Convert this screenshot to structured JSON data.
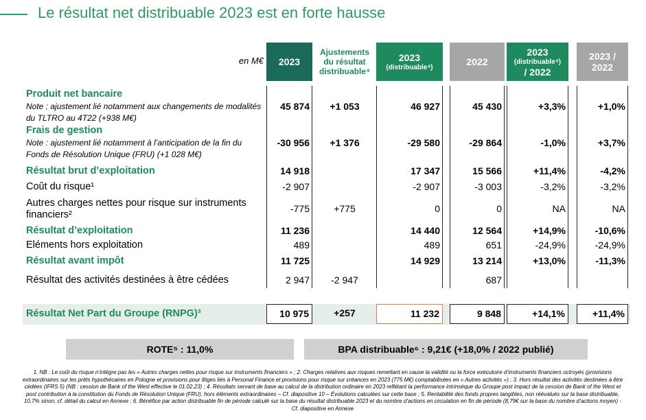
{
  "title": "Le résultat net distribuable 2023 est en forte hausse",
  "table": {
    "unit": "en M€",
    "columns": [
      [
        "2023"
      ],
      [
        "Ajustements du résultat distribuable⁴"
      ],
      [
        "2023",
        "(distribuable⁴)"
      ],
      [
        "2022"
      ],
      [
        "2023",
        "(distribuable⁴)",
        "/ 2022"
      ],
      [
        "2023 /",
        "2022"
      ]
    ],
    "rows": [
      {
        "label": "Produit net bancaire",
        "bold": true,
        "note": "Note : ajustement lié notamment aux changements de modalités du TLTRO au 4T22 (+938 M€)",
        "cells": [
          "45 874",
          "+1 053",
          "46 927",
          "45 430",
          "+3,3%",
          "+1,0%"
        ]
      },
      {
        "label": "Frais de gestion",
        "bold": true,
        "note": "Note : ajustement lié notamment à l’anticipation de la fin du Fonds de Résolution Unique (FRU) (+1 028 M€)",
        "cells": [
          "-30 956",
          "+1 376",
          "-29 580",
          "-29 864",
          "-1,0%",
          "+3,7%"
        ]
      },
      {
        "label": "Résultat brut d’exploitation",
        "bold": true,
        "cells": [
          "14 918",
          null,
          "17 347",
          "15 566",
          "+11,4%",
          "-4,2%"
        ]
      },
      {
        "label": "Coût du risque¹",
        "bold": false,
        "cells": [
          "-2 907",
          null,
          "-2 907",
          "-3 003",
          "-3,2%",
          "-3,2%"
        ]
      },
      {
        "label": "Autres charges nettes pour risque sur instruments financiers²",
        "bold": false,
        "cells": [
          "-775",
          "+775",
          "0",
          "0",
          "NA",
          "NA"
        ]
      },
      {
        "label": "Résultat d’exploitation",
        "bold": true,
        "cells": [
          "11 236",
          null,
          "14 440",
          "12 564",
          "+14,9%",
          "-10,6%"
        ]
      },
      {
        "label": "Eléments hors exploitation",
        "bold": false,
        "cells": [
          "489",
          null,
          "489",
          "651",
          "-24,9%",
          "-24,9%"
        ]
      },
      {
        "label": "Résultat avant impôt",
        "bold": true,
        "cells": [
          "11 725",
          null,
          "14 929",
          "13 214",
          "+13,0%",
          "-11,3%"
        ]
      },
      {
        "label": "Résultat des activités destinées à être cédées",
        "bold": false,
        "cells": [
          "2 947",
          "-2 947",
          null,
          "687",
          null,
          null
        ]
      }
    ],
    "total": {
      "label": "Résultat Net Part du Groupe (RNPG)³",
      "cells": [
        "10 975",
        "+257",
        "11 232",
        "9 848",
        "+14,1%",
        "+11,4%"
      ]
    }
  },
  "kpis": [
    "ROTE⁵ : 11,0%",
    "BPA distribuable⁶ : 9,21€ (+18,0% / 2022 publié)"
  ],
  "footnotes": "1. NB : Le coût du risque n’intègre pas les « Autres charges nettes pour risque sur instruments financiers » ; 2. Charges relatives aux risques remettant en cause la validité ou la force exécutoire d’instruments financiers octroyés (provisions extraordinaires sur les prêts hypothécaires en Pologne et provisions pour litiges liés à Personal Finance et provisions pour risque sur créances en 2023 (775 M€) comptabilisées en « Autres activités ») ; 3. Hors résultat des activités destinées à être cédées (IFRS 5) (NB : cession de Bank of the West effective le 01.02.23) ; 4. Résultats servant de base au calcul de la distribution ordinaire en 2023 reflétant la performance intrinsèque du Groupe post impact de la cession de Bank of the West et post contribution à la constitution du Fonds de Résolution Unique (FRU), hors éléments extraordinaires – Cf. diapositive 10 – Évolutions calculées sur cette base ; 5. Rentabilité des fonds propres tangibles, non réévalués sur la base distribuable, 10,7% sinon, cf. détail du calcul en Annexe ; 6. Bénéfice par action distribuable fin de période calculé sur la base du résultat distribuable 2023 et du nombre d’actions en circulation en fin de période (8,79€ sur la base du nombre d’actions moyen) - Cf. diapositive en Annexe"
}
